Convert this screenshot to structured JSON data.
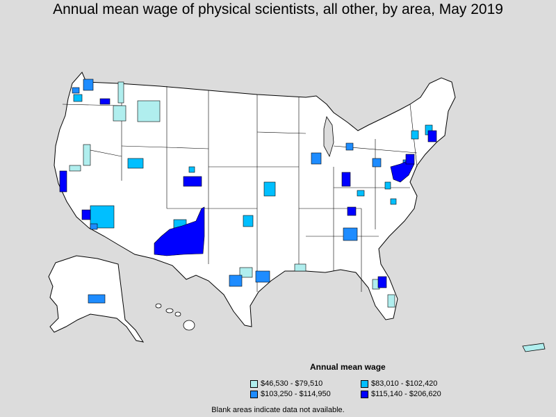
{
  "title": "Annual mean wage of physical scientists, all other, by area, May 2019",
  "legend": {
    "title": "Annual mean wage",
    "items": [
      {
        "label": "$46,530 - $79,510",
        "color": "#b0eeee"
      },
      {
        "label": "$83,010 - $102,420",
        "color": "#00bfff"
      },
      {
        "label": "$103,250 - $114,950",
        "color": "#1e8cff"
      },
      {
        "label": "$115,140 - $206,620",
        "color": "#0000ff"
      }
    ]
  },
  "footnote": "Blank areas indicate data not available.",
  "colors": {
    "background": "#dcdcdc",
    "land": "#ffffff",
    "border": "#000000"
  }
}
